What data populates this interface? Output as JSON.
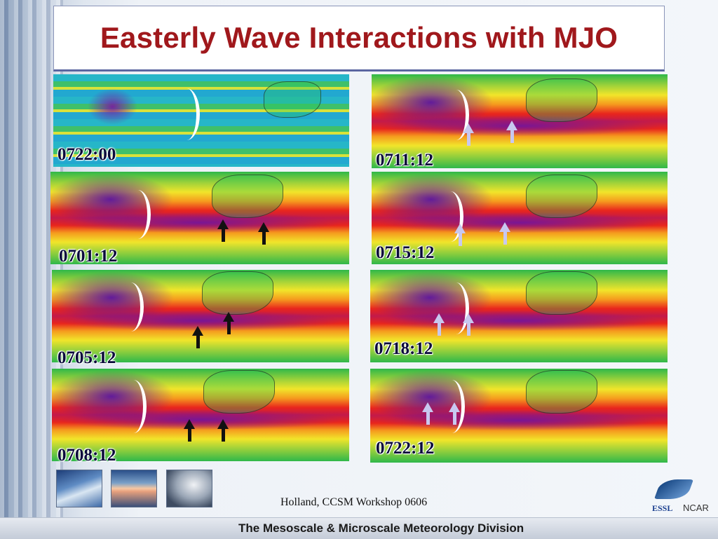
{
  "title": "Easterly Wave Interactions with MJO",
  "panels": [
    {
      "label": "0722:00"
    },
    {
      "label": "0711:12"
    },
    {
      "label": "0701:12"
    },
    {
      "label": "0715:12"
    },
    {
      "label": "0705:12"
    },
    {
      "label": "0718:12"
    },
    {
      "label": "0708:12"
    },
    {
      "label": "0722:12"
    }
  ],
  "colors": {
    "title": "#a0181c",
    "label": "#0a0a3a",
    "dark_arrow": "#111111",
    "light_arrow": "#c8c8f0"
  },
  "credit": "Holland, CCSM Workshop 0606",
  "footer": "The Mesoscale & Microscale Meteorology Division",
  "logo": {
    "essl": "ESSL",
    "ncar": "NCAR"
  }
}
